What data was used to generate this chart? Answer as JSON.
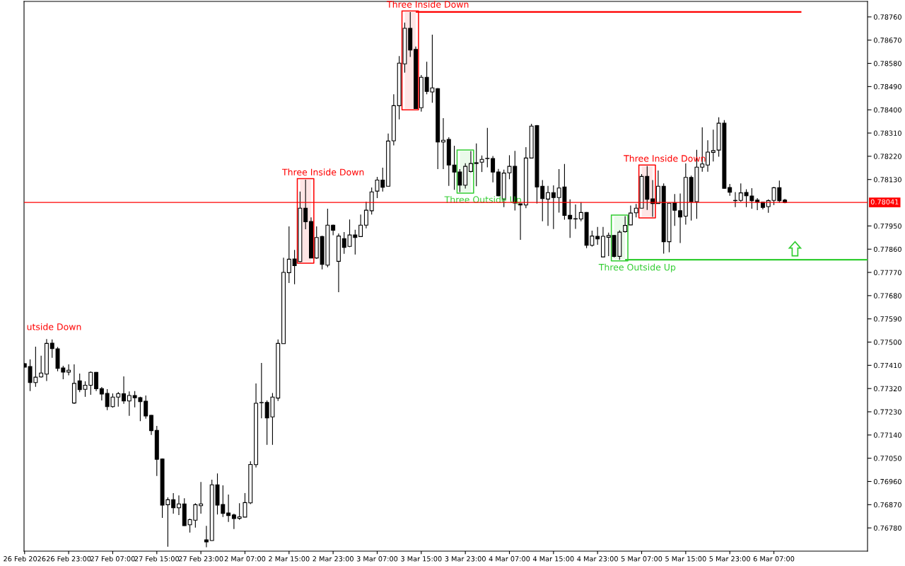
{
  "chart_data": {
    "type": "candlestick",
    "categories": [
      "26 Feb 2026",
      null,
      null,
      null,
      null,
      null,
      null,
      null,
      "26 Feb 23:00",
      null,
      null,
      null,
      null,
      null,
      null,
      null,
      "27 Feb 07:00",
      null,
      null,
      null,
      null,
      null,
      null,
      null,
      "27 Feb 15:00",
      null,
      null,
      null,
      null,
      null,
      null,
      null,
      "27 Feb 23:00",
      null,
      null,
      null,
      null,
      null,
      null,
      null,
      "2 Mar 07:00",
      null,
      null,
      null,
      null,
      null,
      null,
      null,
      "2 Mar 15:00",
      null,
      null,
      null,
      null,
      null,
      null,
      null,
      "2 Mar 23:00",
      null,
      null,
      null,
      null,
      null,
      null,
      null,
      "3 Mar 07:00",
      null,
      null,
      null,
      null,
      null,
      null,
      null,
      "3 Mar 15:00",
      null,
      null,
      null,
      null,
      null,
      null,
      null,
      "3 Mar 23:00",
      null,
      null,
      null,
      null,
      null,
      null,
      null,
      "4 Mar 07:00",
      null,
      null,
      null,
      null,
      null,
      null,
      null,
      "4 Mar 15:00",
      null,
      null,
      null,
      null,
      null,
      null,
      null,
      "4 Mar 23:00",
      null,
      null,
      null,
      null,
      null,
      null,
      null,
      "5 Mar 07:00",
      null,
      null,
      null,
      null,
      null,
      null,
      null,
      "5 Mar 15:00",
      null,
      null,
      null,
      null,
      null,
      null,
      null,
      "5 Mar 23:00",
      null,
      null,
      null,
      null,
      null,
      null,
      null,
      "6 Mar 07:00",
      null,
      null,
      null,
      null,
      null,
      null,
      null,
      null,
      null,
      null,
      null,
      null,
      null,
      null,
      null,
      null,
      null
    ],
    "ohlc": [
      [
        0.77416,
        0.77419,
        0.77402,
        0.77403
      ],
      [
        0.77405,
        0.77433,
        0.7731,
        0.77343
      ],
      [
        0.77343,
        0.77482,
        0.77327,
        0.77364
      ],
      [
        0.77365,
        0.77447,
        0.77362,
        0.7738
      ],
      [
        0.77376,
        0.77512,
        0.77349,
        0.77495
      ],
      [
        0.77496,
        0.7751,
        0.77439,
        0.77475
      ],
      [
        0.77474,
        0.77481,
        0.77387,
        0.77398
      ],
      [
        0.774,
        0.77408,
        0.77356,
        0.77384
      ],
      [
        0.77384,
        0.77414,
        0.77371,
        0.77391
      ],
      [
        0.77264,
        0.77414,
        0.77261,
        0.7734
      ],
      [
        0.7735,
        0.77378,
        0.77306,
        0.77316
      ],
      [
        0.77317,
        0.77348,
        0.77288,
        0.77333
      ],
      [
        0.77333,
        0.77386,
        0.77296,
        0.77383
      ],
      [
        0.77383,
        0.77384,
        0.7731,
        0.77319
      ],
      [
        0.7732,
        0.77326,
        0.77274,
        0.77299
      ],
      [
        0.77301,
        0.77318,
        0.77236,
        0.7725
      ],
      [
        0.7725,
        0.77301,
        0.77246,
        0.77287
      ],
      [
        0.77287,
        0.77307,
        0.7725,
        0.773
      ],
      [
        0.773,
        0.77367,
        0.77261,
        0.77272
      ],
      [
        0.77272,
        0.77309,
        0.77214,
        0.77293
      ],
      [
        0.77293,
        0.7731,
        0.77247,
        0.77284
      ],
      [
        0.77285,
        0.77288,
        0.77194,
        0.77269
      ],
      [
        0.77271,
        0.77293,
        0.77203,
        0.77214
      ],
      [
        0.77216,
        0.77218,
        0.7714,
        0.77157
      ],
      [
        0.77158,
        0.77175,
        0.76981,
        0.77046
      ],
      [
        0.77047,
        0.77049,
        0.76819,
        0.76868
      ],
      [
        0.7687,
        0.76898,
        0.76707,
        0.76889
      ],
      [
        0.76889,
        0.76915,
        0.76835,
        0.76858
      ],
      [
        0.76858,
        0.76906,
        0.7683,
        0.76873
      ],
      [
        0.76873,
        0.76895,
        0.76788,
        0.76789
      ],
      [
        0.76792,
        0.76816,
        0.76762,
        0.76812
      ],
      [
        0.7681,
        0.76876,
        0.76781,
        0.7687
      ],
      [
        0.76866,
        0.76958,
        0.76835,
        0.76873
      ],
      [
        0.76734,
        0.76788,
        0.76705,
        0.76726
      ],
      [
        0.76731,
        0.76967,
        0.7673,
        0.76947
      ],
      [
        0.76947,
        0.76991,
        0.76832,
        0.76868
      ],
      [
        0.76871,
        0.76945,
        0.76822,
        0.76836
      ],
      [
        0.76838,
        0.76909,
        0.76803,
        0.76828
      ],
      [
        0.7683,
        0.76835,
        0.76776,
        0.76816
      ],
      [
        0.76817,
        0.76876,
        0.76811,
        0.76823
      ],
      [
        0.76822,
        0.76915,
        0.76821,
        0.76878
      ],
      [
        0.76877,
        0.77038,
        0.76872,
        0.77026
      ],
      [
        0.77025,
        0.7734,
        0.77014,
        0.77263
      ],
      [
        0.77265,
        0.77419,
        0.77205,
        0.77266
      ],
      [
        0.77266,
        0.77274,
        0.77102,
        0.77206
      ],
      [
        0.7721,
        0.77303,
        0.77102,
        0.77287
      ],
      [
        0.77283,
        0.7751,
        0.77272,
        0.77495
      ],
      [
        0.77494,
        0.77827,
        0.77493,
        0.7777
      ],
      [
        0.77769,
        0.77948,
        0.77729,
        0.77821
      ],
      [
        0.77822,
        0.77857,
        0.77724,
        0.77796
      ],
      [
        0.77812,
        0.78083,
        0.7781,
        0.78019
      ],
      [
        0.78019,
        0.78129,
        0.77937,
        0.77966
      ],
      [
        0.77967,
        0.77983,
        0.77825,
        0.77826
      ],
      [
        0.77826,
        0.77948,
        0.77823,
        0.77905
      ],
      [
        0.77909,
        0.77912,
        0.77782,
        0.77801
      ],
      [
        0.77798,
        0.78017,
        0.7779,
        0.77953
      ],
      [
        0.77953,
        0.77955,
        0.77914,
        0.77933
      ],
      [
        0.77813,
        0.77921,
        0.77693,
        0.77911
      ],
      [
        0.77901,
        0.77926,
        0.77842,
        0.77867
      ],
      [
        0.77871,
        0.77975,
        0.77868,
        0.77915
      ],
      [
        0.77915,
        0.77935,
        0.77839,
        0.77905
      ],
      [
        0.77909,
        0.77994,
        0.77908,
        0.77953
      ],
      [
        0.77953,
        0.78044,
        0.77941,
        0.78011
      ],
      [
        0.78009,
        0.78099,
        0.77994,
        0.78082
      ],
      [
        0.78085,
        0.7814,
        0.78058,
        0.78128
      ],
      [
        0.78128,
        0.78176,
        0.78083,
        0.781
      ],
      [
        0.78104,
        0.78308,
        0.78103,
        0.78279
      ],
      [
        0.7828,
        0.7846,
        0.78262,
        0.78416
      ],
      [
        0.78416,
        0.78608,
        0.78363,
        0.78581
      ],
      [
        0.78578,
        0.78738,
        0.78544,
        0.78716
      ],
      [
        0.78716,
        0.78779,
        0.78605,
        0.78632
      ],
      [
        0.78634,
        0.78645,
        0.78404,
        0.78405
      ],
      [
        0.78408,
        0.78535,
        0.78393,
        0.78526
      ],
      [
        0.78526,
        0.78586,
        0.7846,
        0.78471
      ],
      [
        0.78469,
        0.78691,
        0.78427,
        0.78485
      ],
      [
        0.78482,
        0.78484,
        0.7817,
        0.78275
      ],
      [
        0.78275,
        0.78368,
        0.7817,
        0.78282
      ],
      [
        0.78285,
        0.78294,
        0.78105,
        0.78186
      ],
      [
        0.78186,
        0.78261,
        0.7809,
        0.78159
      ],
      [
        0.78159,
        0.7817,
        0.78081,
        0.78108
      ],
      [
        0.78108,
        0.78193,
        0.78095,
        0.78181
      ],
      [
        0.78161,
        0.7824,
        0.78157,
        0.78192
      ],
      [
        0.78195,
        0.7827,
        0.78104,
        0.78192
      ],
      [
        0.78197,
        0.78223,
        0.78159,
        0.78208
      ],
      [
        0.78211,
        0.7833,
        0.78177,
        0.78212
      ],
      [
        0.78211,
        0.78221,
        0.78119,
        0.78159
      ],
      [
        0.78159,
        0.78171,
        0.78065,
        0.78067
      ],
      [
        0.78053,
        0.78168,
        0.78023,
        0.78155
      ],
      [
        0.78156,
        0.78224,
        0.78131,
        0.78181
      ],
      [
        0.78181,
        0.78241,
        0.7801,
        0.78039
      ],
      [
        0.78036,
        0.78037,
        0.77896,
        0.78031
      ],
      [
        0.78031,
        0.78255,
        0.78019,
        0.78213
      ],
      [
        0.78213,
        0.78346,
        0.78212,
        0.78337
      ],
      [
        0.78339,
        0.78341,
        0.78037,
        0.78101
      ],
      [
        0.78104,
        0.78128,
        0.77968,
        0.78056
      ],
      [
        0.78054,
        0.78105,
        0.7795,
        0.78079
      ],
      [
        0.78079,
        0.78107,
        0.77938,
        0.7806
      ],
      [
        0.7806,
        0.7817,
        0.78002,
        0.78097
      ],
      [
        0.78101,
        0.7819,
        0.77974,
        0.77991
      ],
      [
        0.77991,
        0.78053,
        0.77904,
        0.77977
      ],
      [
        0.77977,
        0.78033,
        0.77939,
        0.77978
      ],
      [
        0.77977,
        0.78042,
        0.77968,
        0.78002
      ],
      [
        0.78002,
        0.78004,
        0.77864,
        0.77875
      ],
      [
        0.77875,
        0.77932,
        0.7787,
        0.77911
      ],
      [
        0.7791,
        0.77946,
        0.77877,
        0.779
      ],
      [
        0.7783,
        0.77946,
        0.77829,
        0.7791
      ],
      [
        0.77906,
        0.77924,
        0.77833,
        0.77913
      ],
      [
        0.77913,
        0.77915,
        0.77828,
        0.77832
      ],
      [
        0.77832,
        0.77933,
        0.77819,
        0.77926
      ],
      [
        0.77928,
        0.77988,
        0.77924,
        0.77952
      ],
      [
        0.77954,
        0.78029,
        0.77953,
        0.78
      ],
      [
        0.78001,
        0.78035,
        0.77983,
        0.78019
      ],
      [
        0.78019,
        0.78151,
        0.78018,
        0.78142
      ],
      [
        0.78142,
        0.78182,
        0.78012,
        0.78053
      ],
      [
        0.78055,
        0.78128,
        0.77985,
        0.78037
      ],
      [
        0.78037,
        0.78165,
        0.78036,
        0.78104
      ],
      [
        0.78104,
        0.78115,
        0.77843,
        0.77889
      ],
      [
        0.77889,
        0.7804,
        0.77848,
        0.78038
      ],
      [
        0.7804,
        0.78074,
        0.7795,
        0.78011
      ],
      [
        0.78009,
        0.78076,
        0.77884,
        0.77985
      ],
      [
        0.77988,
        0.78192,
        0.77955,
        0.78138
      ],
      [
        0.78138,
        0.78145,
        0.77971,
        0.78044
      ],
      [
        0.78044,
        0.78245,
        0.77978,
        0.78178
      ],
      [
        0.78178,
        0.78332,
        0.7816,
        0.7819
      ],
      [
        0.78186,
        0.78282,
        0.7816,
        0.78236
      ],
      [
        0.78235,
        0.78323,
        0.782,
        0.78242
      ],
      [
        0.78244,
        0.78371,
        0.78218,
        0.78348
      ],
      [
        0.78348,
        0.7836,
        0.78095,
        0.78096
      ],
      [
        0.78099,
        0.78113,
        0.78067,
        0.78081
      ],
      [
        0.78048,
        0.78081,
        0.78023,
        0.78049
      ],
      [
        0.78049,
        0.78115,
        0.78044,
        0.78078
      ],
      [
        0.7808,
        0.78092,
        0.78023,
        0.78067
      ],
      [
        0.78066,
        0.78096,
        0.78017,
        0.78048
      ],
      [
        0.7805,
        0.78058,
        0.78011,
        0.78042
      ],
      [
        0.78042,
        0.78044,
        0.78014,
        0.78022
      ],
      [
        0.78025,
        0.78053,
        0.78001,
        0.78048
      ],
      [
        0.78049,
        0.78101,
        0.78031,
        0.78098
      ],
      [
        0.78098,
        0.78126,
        0.7804,
        0.78048
      ],
      [
        0.7805,
        0.78055,
        0.78038,
        0.78041
      ],
      null,
      null,
      null,
      null,
      null,
      null,
      null,
      null,
      null,
      null,
      null,
      null,
      null,
      null,
      null
    ],
    "ylim": [
      0.7669,
      0.7882
    ],
    "yticks": [
      {
        "value": 0.7876,
        "label": "0.78760"
      },
      {
        "value": 0.7867,
        "label": "0.78670"
      },
      {
        "value": 0.7858,
        "label": "0.78580"
      },
      {
        "value": 0.7849,
        "label": "0.78490"
      },
      {
        "value": 0.784,
        "label": "0.78400"
      },
      {
        "value": 0.7831,
        "label": "0.78310"
      },
      {
        "value": 0.7822,
        "label": "0.78220"
      },
      {
        "value": 0.7813,
        "label": "0.78130"
      },
      {
        "value": 0.7795,
        "label": "0.77950"
      },
      {
        "value": 0.7786,
        "label": "0.77860"
      },
      {
        "value": 0.7777,
        "label": "0.77770"
      },
      {
        "value": 0.7768,
        "label": "0.77680"
      },
      {
        "value": 0.7759,
        "label": "0.77590"
      },
      {
        "value": 0.775,
        "label": "0.77500"
      },
      {
        "value": 0.7741,
        "label": "0.77410"
      },
      {
        "value": 0.7732,
        "label": "0.77320"
      },
      {
        "value": 0.7723,
        "label": "0.77230"
      },
      {
        "value": 0.7714,
        "label": "0.77140"
      },
      {
        "value": 0.7705,
        "label": "0.77050"
      },
      {
        "value": 0.7696,
        "label": "0.76960"
      },
      {
        "value": 0.7687,
        "label": "0.76870"
      },
      {
        "value": 0.7678,
        "label": "0.76780"
      }
    ],
    "series": [
      {
        "name": "Three Inside Down",
        "type": "line",
        "color": "#ff0000",
        "values": [
          null,
          null,
          null,
          null,
          null,
          null,
          null,
          null,
          null,
          null,
          null,
          null,
          null,
          null,
          null,
          null,
          null,
          null,
          null,
          null,
          null,
          null,
          null,
          null,
          null,
          null,
          null,
          null,
          null,
          null,
          null,
          null,
          null,
          null,
          null,
          null,
          null,
          null,
          null,
          null,
          null,
          null,
          null,
          null,
          null,
          null,
          null,
          null,
          null,
          null,
          null,
          null,
          null,
          null,
          null,
          null,
          null,
          null,
          null,
          null,
          null,
          null,
          null,
          null,
          null,
          null,
          null,
          null,
          null,
          null,
          null,
          0.78779,
          0.78779,
          0.78779,
          0.78779,
          0.78779,
          0.78779,
          0.78779,
          0.78779,
          0.78779,
          0.78779,
          0.78779,
          0.78779,
          0.78779,
          0.78779,
          0.78779,
          0.78779,
          0.78779,
          0.78779,
          0.78779,
          0.78779,
          0.78779,
          0.78779,
          0.78779,
          0.78779,
          0.78779,
          0.78779,
          0.78779,
          0.78779,
          0.78779,
          0.78779,
          0.78779,
          0.78779,
          0.78779,
          0.78779,
          0.78779,
          0.78779,
          0.78779,
          0.78779,
          0.78779,
          0.78779,
          0.78779,
          0.78779,
          0.78779,
          0.78779,
          0.78779,
          0.78779,
          0.78779,
          0.78779,
          0.78779,
          0.78779,
          0.78779,
          0.78779,
          0.78779,
          0.78779,
          0.78779,
          0.78779,
          0.78779,
          0.78779,
          0.78779,
          0.78779,
          0.78779,
          0.78779,
          0.78779,
          0.78779,
          0.78779,
          0.78779,
          0.78779,
          0.78779,
          0.78779,
          0.78779,
          0.78779,
          null,
          null,
          null,
          null,
          null,
          null,
          null,
          null,
          null,
          null,
          null,
          null
        ],
        "lower": [
          null,
          null,
          null,
          null,
          null,
          null,
          null,
          null,
          null,
          null,
          null,
          null,
          null,
          null,
          null,
          null,
          null,
          null,
          null,
          null,
          null,
          null,
          null,
          null,
          null,
          null,
          null,
          null,
          null,
          null,
          null,
          null,
          null,
          null,
          null,
          null,
          null,
          null,
          null,
          null,
          null,
          null,
          null,
          null,
          null,
          null,
          null,
          null,
          null,
          null,
          0.7781,
          0.7781,
          0.7781,
          null,
          null,
          null,
          null,
          null,
          null,
          null,
          null,
          null,
          null,
          null,
          null,
          null,
          null,
          null,
          null,
          0.78404,
          0.78404,
          0.78404,
          null,
          null,
          null,
          null,
          null,
          null,
          null,
          null,
          null,
          null,
          null,
          null,
          null,
          null,
          null,
          null,
          null,
          null,
          null,
          null,
          null,
          null,
          null,
          null,
          null,
          null,
          null,
          null,
          null,
          null,
          null,
          null,
          null,
          null,
          null,
          null,
          null,
          null,
          null,
          null,
          0.77985,
          0.77985,
          0.77985,
          null,
          null,
          null,
          null,
          null,
          null,
          null,
          null,
          null,
          null,
          null,
          null,
          null,
          null,
          null,
          null,
          null,
          null,
          null,
          null,
          null,
          null,
          null,
          null,
          null,
          null,
          null,
          null,
          null,
          null,
          null,
          null,
          null,
          null,
          null,
          null,
          null,
          null,
          null
        ],
        "upper": [
          null,
          null,
          null,
          null,
          null,
          null,
          null,
          null,
          null,
          null,
          null,
          null,
          null,
          null,
          null,
          null,
          null,
          null,
          null,
          null,
          null,
          null,
          null,
          null,
          null,
          null,
          null,
          null,
          null,
          null,
          null,
          null,
          null,
          null,
          null,
          null,
          null,
          null,
          null,
          null,
          null,
          null,
          null,
          null,
          null,
          null,
          null,
          null,
          null,
          null,
          0.78129,
          0.78129,
          0.78129,
          null,
          null,
          null,
          null,
          null,
          null,
          null,
          null,
          null,
          null,
          null,
          null,
          null,
          null,
          null,
          null,
          0.78779,
          0.78779,
          0.78779,
          null,
          null,
          null,
          null,
          null,
          null,
          null,
          null,
          null,
          null,
          null,
          null,
          null,
          null,
          null,
          null,
          null,
          null,
          null,
          null,
          null,
          null,
          null,
          null,
          null,
          null,
          null,
          null,
          null,
          null,
          null,
          null,
          null,
          null,
          null,
          null,
          null,
          null,
          null,
          null,
          0.78182,
          0.78182,
          0.78182,
          null,
          null,
          null,
          null,
          null,
          null,
          null,
          null,
          null,
          null,
          null,
          null,
          null,
          null,
          null,
          null,
          null,
          null,
          null,
          null,
          null,
          null,
          null,
          null,
          null,
          null,
          null,
          null,
          null,
          null,
          null,
          null,
          null,
          null,
          null,
          null,
          null,
          null,
          null
        ]
      },
      {
        "name": "Three Outside Up",
        "type": "line",
        "color": "#32cd32",
        "values": [
          null,
          null,
          null,
          null,
          null,
          null,
          null,
          null,
          null,
          null,
          null,
          null,
          null,
          null,
          null,
          null,
          null,
          null,
          null,
          null,
          null,
          null,
          null,
          null,
          null,
          null,
          null,
          null,
          null,
          null,
          null,
          null,
          null,
          null,
          null,
          null,
          null,
          null,
          null,
          null,
          null,
          null,
          null,
          null,
          null,
          null,
          null,
          null,
          null,
          null,
          null,
          null,
          null,
          null,
          null,
          null,
          null,
          null,
          null,
          null,
          null,
          null,
          null,
          null,
          null,
          null,
          null,
          null,
          null,
          null,
          null,
          null,
          null,
          null,
          null,
          null,
          null,
          null,
          null,
          null,
          null,
          null,
          null,
          null,
          null,
          null,
          null,
          null,
          null,
          null,
          null,
          null,
          null,
          null,
          null,
          null,
          null,
          null,
          null,
          null,
          null,
          null,
          null,
          null,
          null,
          null,
          null,
          null,
          null,
          0.77819,
          0.77819,
          0.77819,
          0.77819,
          0.77819,
          0.77819,
          0.77819,
          0.77819,
          0.77819,
          0.77819,
          0.77819,
          0.77819,
          0.77819,
          0.77819,
          0.77819,
          0.77819,
          0.77819,
          0.77819,
          0.77819,
          0.77819,
          0.77819,
          0.77819,
          0.77819,
          0.77819,
          0.77819,
          0.77819,
          0.77819,
          0.77819,
          0.77819,
          0.77819,
          0.77819,
          0.77819,
          0.77819,
          0.77819,
          0.77819,
          0.77819,
          0.77819,
          0.77819,
          0.77819,
          0.77819,
          0.77819,
          0.77819,
          0.77819,
          0.77819,
          0.77819
        ],
        "lower": [
          null,
          null,
          null,
          null,
          null,
          null,
          null,
          null,
          null,
          null,
          null,
          null,
          null,
          null,
          null,
          null,
          null,
          null,
          null,
          null,
          null,
          null,
          null,
          null,
          null,
          null,
          null,
          null,
          null,
          null,
          null,
          null,
          null,
          null,
          null,
          null,
          null,
          null,
          null,
          null,
          null,
          null,
          null,
          null,
          null,
          null,
          null,
          null,
          null,
          null,
          null,
          null,
          null,
          null,
          null,
          null,
          null,
          null,
          null,
          null,
          null,
          null,
          null,
          null,
          null,
          null,
          null,
          null,
          null,
          null,
          null,
          null,
          null,
          null,
          null,
          null,
          null,
          null,
          null,
          0.78081,
          0.78081,
          0.78081,
          null,
          null,
          null,
          null,
          null,
          null,
          null,
          null,
          null,
          null,
          null,
          null,
          null,
          null,
          null,
          null,
          null,
          null,
          null,
          null,
          null,
          null,
          null,
          null,
          null,
          0.77819,
          0.77819,
          0.77819,
          null,
          null,
          null,
          null,
          null,
          null,
          null,
          null,
          null,
          null,
          null,
          null,
          null,
          null,
          null,
          null,
          null,
          null,
          null,
          null,
          null,
          null,
          null,
          null,
          null,
          null,
          null,
          null,
          null,
          null,
          null,
          null,
          null,
          null,
          null,
          null,
          null,
          null,
          null,
          null,
          null,
          null,
          null,
          null
        ],
        "upper": [
          null,
          null,
          null,
          null,
          null,
          null,
          null,
          null,
          null,
          null,
          null,
          null,
          null,
          null,
          null,
          null,
          null,
          null,
          null,
          null,
          null,
          null,
          null,
          null,
          null,
          null,
          null,
          null,
          null,
          null,
          null,
          null,
          null,
          null,
          null,
          null,
          null,
          null,
          null,
          null,
          null,
          null,
          null,
          null,
          null,
          null,
          null,
          null,
          null,
          null,
          null,
          null,
          null,
          null,
          null,
          null,
          null,
          null,
          null,
          null,
          null,
          null,
          null,
          null,
          null,
          null,
          null,
          null,
          null,
          null,
          null,
          null,
          null,
          null,
          null,
          null,
          null,
          null,
          null,
          0.7824,
          0.7824,
          0.7824,
          null,
          null,
          null,
          null,
          null,
          null,
          null,
          null,
          null,
          null,
          null,
          null,
          null,
          null,
          null,
          null,
          null,
          null,
          null,
          null,
          null,
          null,
          null,
          null,
          null,
          0.77988,
          0.77988,
          0.77988,
          null,
          null,
          null,
          null,
          null,
          null,
          null,
          null,
          null,
          null,
          null,
          null,
          null,
          null,
          null,
          null,
          null,
          null,
          null,
          null,
          null,
          null,
          null,
          null,
          null,
          null,
          null,
          null,
          null,
          null,
          null,
          null,
          null,
          null,
          null,
          null,
          null,
          null,
          null,
          null,
          null,
          null,
          null,
          null
        ]
      }
    ],
    "ref_lines": [
      {
        "axis": "y",
        "value": 0.78041,
        "label": "0.78041",
        "color": "#ff0000"
      }
    ],
    "annotations": [
      "utside Down"
    ]
  }
}
